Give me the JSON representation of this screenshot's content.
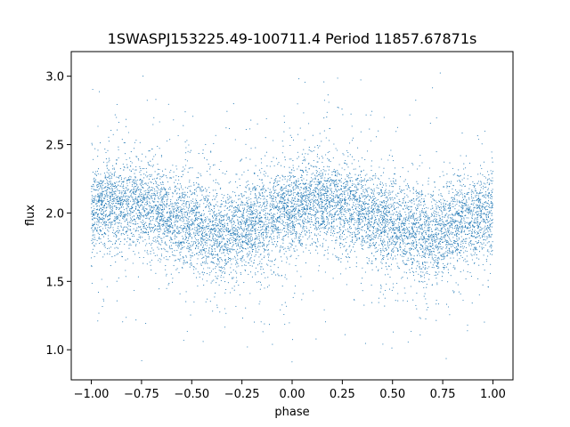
{
  "chart_data": {
    "type": "scatter",
    "title": "1SWASPJ153225.49-100711.4 Period 11857.67871s",
    "xlabel": "phase",
    "ylabel": "flux",
    "xlim": [
      -1.1,
      1.1
    ],
    "ylim": [
      0.78,
      3.18
    ],
    "x_ticks": [
      -1.0,
      -0.75,
      -0.5,
      -0.25,
      0.0,
      0.25,
      0.5,
      0.75,
      1.0
    ],
    "x_tick_labels": [
      "−1.00",
      "−0.75",
      "−0.50",
      "−0.25",
      "0.00",
      "0.25",
      "0.50",
      "0.75",
      "1.00"
    ],
    "y_ticks": [
      1.0,
      1.5,
      2.0,
      2.5,
      3.0
    ],
    "y_tick_labels": [
      "1.0",
      "1.5",
      "2.0",
      "2.5",
      "3.0"
    ],
    "grid": false,
    "legend": "none",
    "marker_color": "#1f77b4",
    "series": [
      {
        "x_range": [
          -1.0,
          1.0
        ],
        "y_range": [
          0.9,
          3.05
        ],
        "profile": [
          [
            -1.0,
            2.02
          ],
          [
            -0.9,
            2.06
          ],
          [
            -0.8,
            2.08
          ],
          [
            -0.7,
            2.03
          ],
          [
            -0.6,
            1.97
          ],
          [
            -0.5,
            1.92
          ],
          [
            -0.4,
            1.86
          ],
          [
            -0.3,
            1.84
          ],
          [
            -0.2,
            1.9
          ],
          [
            -0.1,
            1.97
          ],
          [
            0.0,
            2.02
          ],
          [
            0.1,
            2.06
          ],
          [
            0.2,
            2.08
          ],
          [
            0.3,
            2.03
          ],
          [
            0.4,
            1.97
          ],
          [
            0.5,
            1.92
          ],
          [
            0.6,
            1.86
          ],
          [
            0.7,
            1.84
          ],
          [
            0.8,
            1.9
          ],
          [
            0.9,
            1.97
          ],
          [
            1.0,
            2.02
          ]
        ],
        "scatter_sd": 0.16
      }
    ]
  }
}
